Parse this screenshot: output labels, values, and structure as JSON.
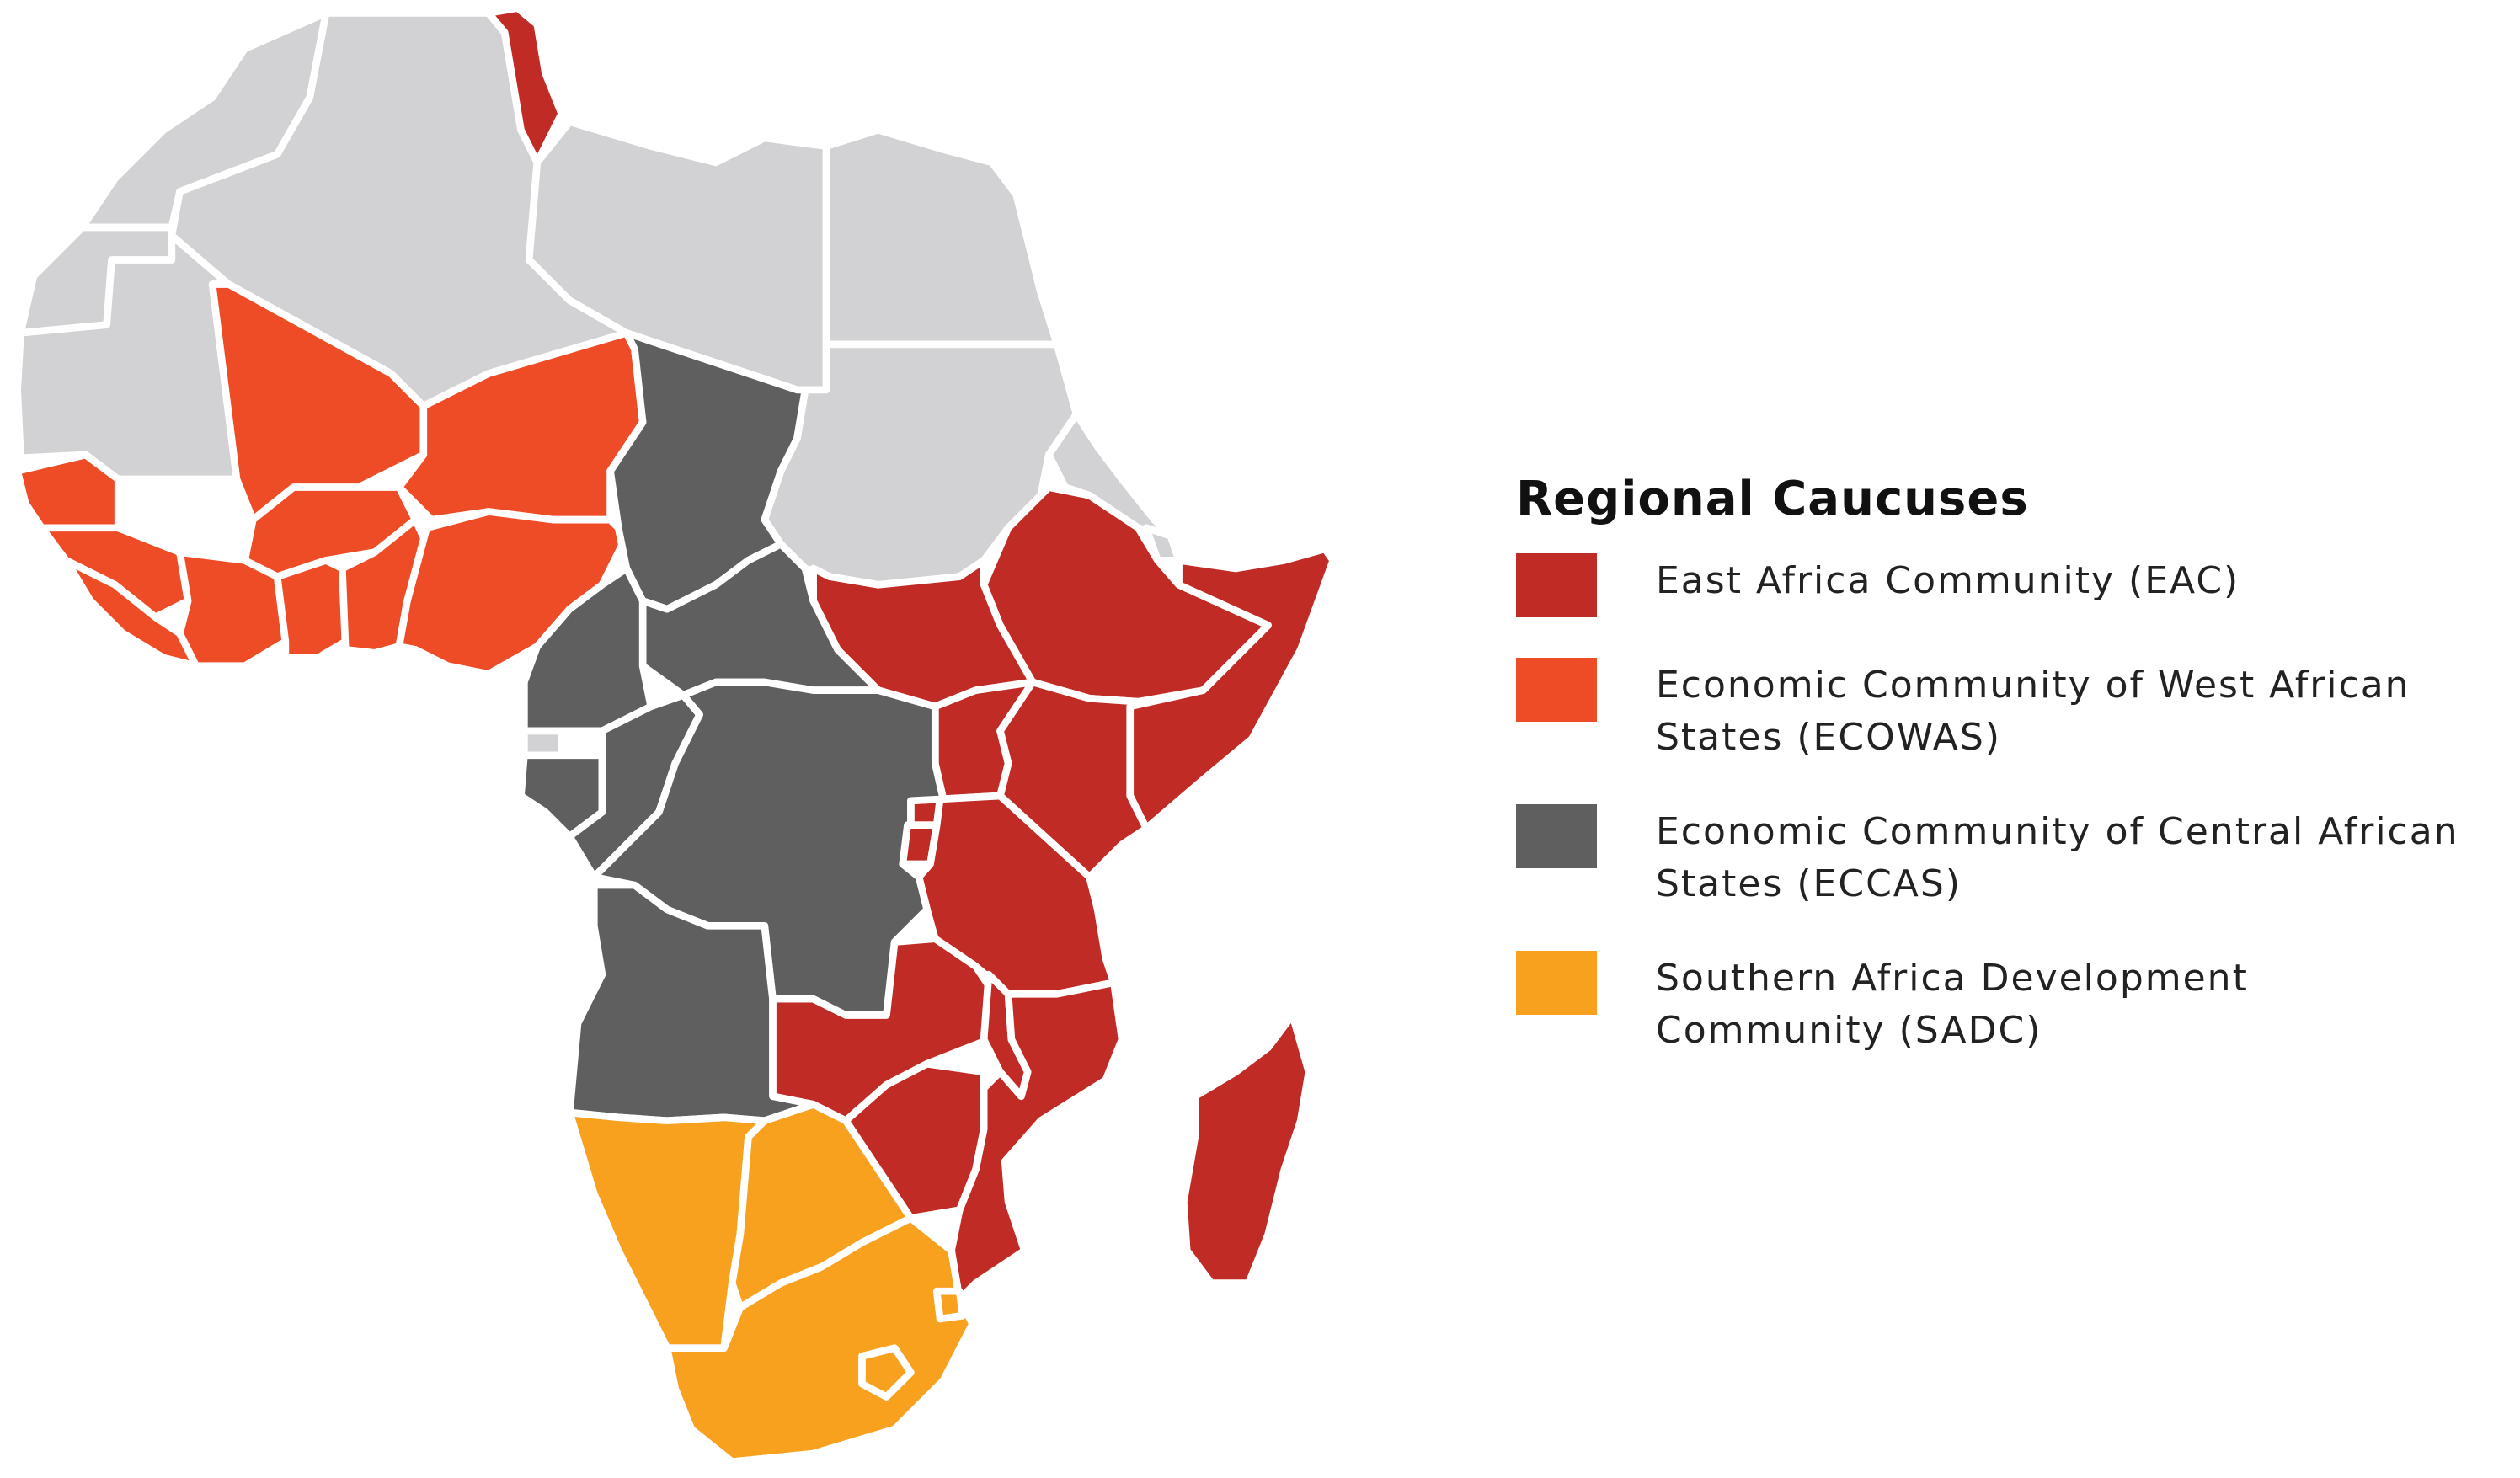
{
  "legend": {
    "title": "Regional Caucuses",
    "items": [
      {
        "label": "East Africa Community (EAC)",
        "color": "#c12b26"
      },
      {
        "label": "Economic Community of West African States (ECOWAS)",
        "color": "#ee4b27"
      },
      {
        "label": "Economic Community of Central African States (ECCAS)",
        "color": "#5f5f5f"
      },
      {
        "label": "Southern Africa Development Community (SADC)",
        "color": "#f7a11f"
      }
    ]
  },
  "colors": {
    "none": "#d2d1d3",
    "eac": "#c12b26",
    "ecowas": "#ee4b27",
    "eccas": "#5f5f5f",
    "sadc": "#f7a11f",
    "border": "#ffffff"
  }
}
